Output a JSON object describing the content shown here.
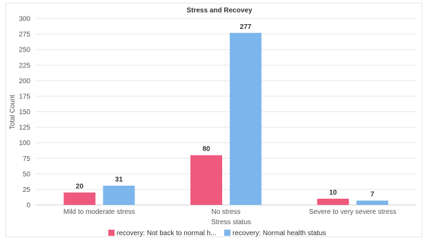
{
  "chart_data": {
    "type": "bar",
    "title": "Stress and Recovey",
    "xlabel": "Stress status",
    "ylabel": "Total Count",
    "categories": [
      "Mild to moderate stress",
      "No stress",
      "Severe to very severe stress"
    ],
    "series": [
      {
        "name": "recovery: Not back to normal h...",
        "values": [
          20,
          80,
          10
        ],
        "color": "#f0597e"
      },
      {
        "name": "recovery: Normal health status",
        "values": [
          31,
          277,
          7
        ],
        "color": "#7db6ec"
      }
    ],
    "ylim": [
      0,
      300
    ],
    "yticks": [
      "0",
      "25",
      "50",
      "75",
      "100",
      "125",
      "150",
      "175",
      "200",
      "225",
      "250",
      "275",
      "300"
    ],
    "grid": true,
    "legend_position": "bottom-center",
    "data_labels": true
  }
}
